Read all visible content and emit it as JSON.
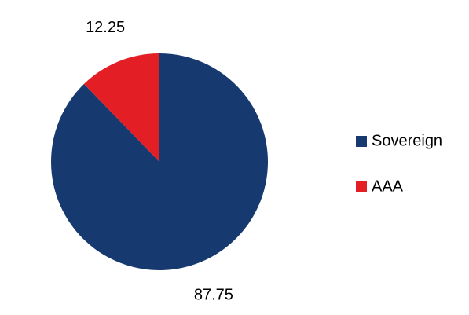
{
  "chart_data": {
    "type": "pie",
    "categories": [
      "Sovereign",
      "AAA"
    ],
    "values": [
      87.75,
      12.25
    ],
    "colors": [
      "#163a70",
      "#e31e24"
    ]
  }
}
